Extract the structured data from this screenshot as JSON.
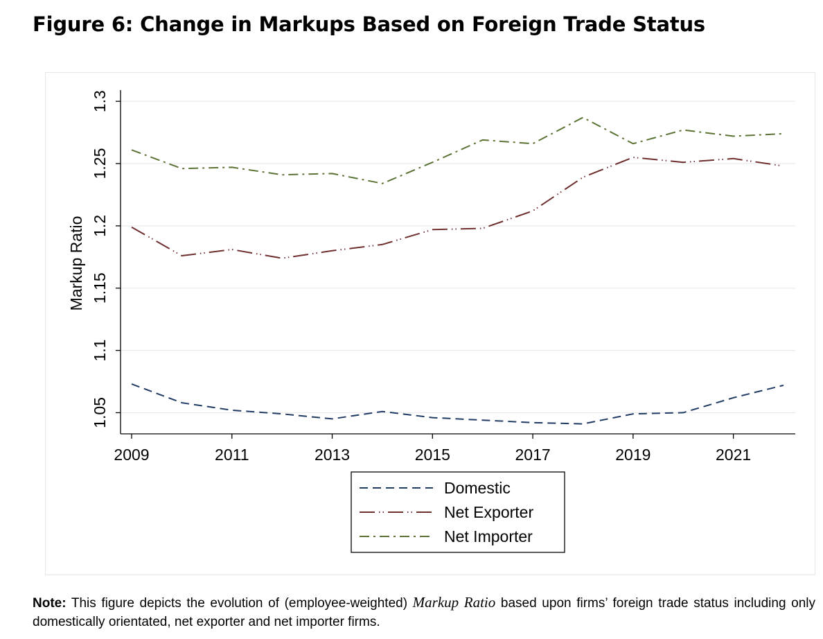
{
  "title": "Figure 6: Change in Markups Based on Foreign Trade Status",
  "note": {
    "label": "Note:",
    "text_before": "This figure depicts the evolution of (employee-weighted)",
    "emphasis": "Markup Ratio",
    "text_after": "based upon firms’ foreign trade status including only domestically orientated, net exporter and net importer firms."
  },
  "chart_data": {
    "type": "line",
    "ylabel": "Markup Ratio",
    "xlabel": "",
    "x": [
      2009,
      2010,
      2011,
      2012,
      2013,
      2014,
      2015,
      2016,
      2017,
      2018,
      2019,
      2020,
      2021,
      2022
    ],
    "xticks": [
      "2009",
      "2011",
      "2013",
      "2015",
      "2017",
      "2019",
      "2021"
    ],
    "yticks": [
      "1.05",
      "1.1",
      "1.15",
      "1.2",
      "1.25",
      "1.3"
    ],
    "xlim": [
      2009,
      2022
    ],
    "ylim": [
      1.033,
      1.309
    ],
    "grid": true,
    "legend_position": "bottom",
    "series": [
      {
        "name": "Domestic",
        "color": "#1f3b63",
        "dash": "dashed",
        "values": [
          1.073,
          1.058,
          1.052,
          1.049,
          1.045,
          1.051,
          1.046,
          1.044,
          1.042,
          1.041,
          1.049,
          1.05,
          1.062,
          1.072
        ]
      },
      {
        "name": "Net Exporter",
        "color": "#6e2e2e",
        "dash": "long-dash-dot-dot",
        "values": [
          1.199,
          1.176,
          1.181,
          1.174,
          1.18,
          1.185,
          1.197,
          1.198,
          1.212,
          1.239,
          1.255,
          1.251,
          1.254,
          1.248
        ]
      },
      {
        "name": "Net Importer",
        "color": "#5a7334",
        "dash": "dash-dot",
        "values": [
          1.261,
          1.246,
          1.247,
          1.241,
          1.242,
          1.234,
          1.251,
          1.269,
          1.266,
          1.287,
          1.266,
          1.277,
          1.272,
          1.274
        ]
      }
    ]
  }
}
